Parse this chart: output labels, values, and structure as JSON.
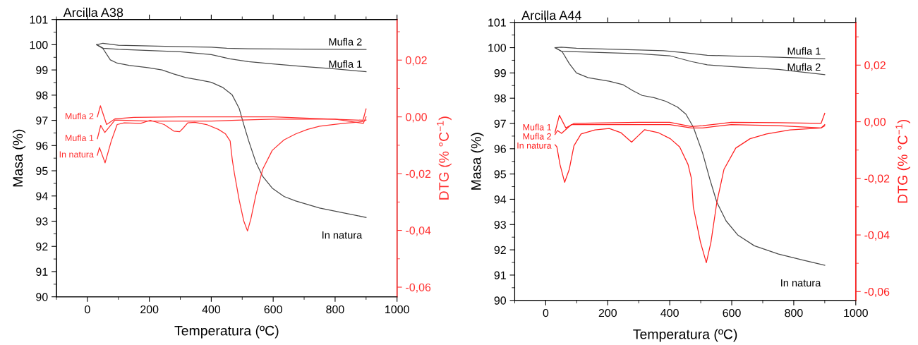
{
  "chart_data": [
    {
      "type": "line",
      "title": "Arcilla A38",
      "xlabel": "Temperatura (ºC)",
      "ylabel": "Masa (%)",
      "y2label": "DTG (% °C$^{−1}$)",
      "xlim": [
        -100,
        1000
      ],
      "xticks": [
        {
          "value": -100,
          "label": null
        },
        0,
        {
          "value": 100,
          "label": null
        },
        200,
        {
          "value": 300,
          "label": null
        },
        400,
        {
          "value": 500,
          "label": null
        },
        600,
        {
          "value": 700,
          "label": null
        },
        800,
        {
          "value": 900,
          "label": null
        },
        1000
      ],
      "ylim": [
        90,
        101
      ],
      "yticks": [
        90,
        {
          "value": 90.5,
          "label": null
        },
        91,
        {
          "value": 91.5,
          "label": null
        },
        92,
        {
          "value": 92.5,
          "label": null
        },
        93,
        {
          "value": 93.5,
          "label": null
        },
        94,
        {
          "value": 94.5,
          "label": null
        },
        95,
        {
          "value": 95.5,
          "label": null
        },
        96,
        {
          "value": 96.5,
          "label": null
        },
        97,
        {
          "value": 97.5,
          "label": null
        },
        98,
        {
          "value": 98.5,
          "label": null
        },
        99,
        {
          "value": 99.5,
          "label": null
        },
        100,
        {
          "value": 100.5,
          "label": null
        },
        101
      ],
      "y2lim": [
        -0.0634,
        0.0343
      ],
      "y2ticks": [
        {
          "value": -0.06,
          "label": "-0,06"
        },
        {
          "value": -0.05,
          "label": null
        },
        {
          "value": -0.04,
          "label": "-0,04"
        },
        {
          "value": -0.03,
          "label": null
        },
        {
          "value": -0.02,
          "label": "-0,02"
        },
        {
          "value": -0.01,
          "label": null
        },
        {
          "value": 0,
          "label": "0,00"
        },
        {
          "value": 0.01,
          "label": null
        },
        {
          "value": 0.02,
          "label": "0,02"
        },
        {
          "value": 0.03,
          "label": null
        }
      ],
      "series": [
        {
          "name": "Mufla 2",
          "color": "#4a4a4a",
          "x": [
            30,
            50,
            100,
            200,
            400,
            450,
            520,
            600,
            900
          ],
          "values": [
            100,
            100.06,
            99.98,
            99.95,
            99.9,
            99.86,
            99.84,
            99.83,
            99.81
          ]
        },
        {
          "name": "Mufla 1",
          "color": "#4a4a4a",
          "x": [
            30,
            51,
            100,
            300,
            400,
            460,
            520,
            600,
            700,
            800,
            900
          ],
          "values": [
            100,
            99.86,
            99.82,
            99.72,
            99.61,
            99.44,
            99.33,
            99.24,
            99.13,
            99.04,
            98.93
          ]
        },
        {
          "name": "In natura",
          "color": "#4a4a4a",
          "x": [
            30,
            50,
            74,
            96,
            134,
            195,
            241,
            279,
            317,
            362,
            400,
            438,
            467,
            490,
            505,
            521,
            544,
            566,
            597,
            635,
            673,
            750,
            826,
            900
          ],
          "values": [
            100,
            99.85,
            99.4,
            99.27,
            99.18,
            99.09,
            99.0,
            98.84,
            98.7,
            98.6,
            98.51,
            98.3,
            98.02,
            97.48,
            96.83,
            96.18,
            95.34,
            94.78,
            94.31,
            93.98,
            93.8,
            93.52,
            93.33,
            93.15
          ]
        },
        {
          "name": "Mufla 2",
          "color": "#ff3030",
          "axis": "y2",
          "x": [
            32,
            42,
            62,
            89,
            150,
            300,
            600,
            890,
            900
          ],
          "values": [
            0.0,
            0.0039,
            -0.0027,
            -0.0007,
            -0.0002,
            0.0,
            0.0,
            -0.0012,
            0.0028
          ]
        },
        {
          "name": "Mufla 1",
          "color": "#ff3030",
          "axis": "y2",
          "x": [
            32,
            43,
            56,
            89,
            200,
            400,
            500,
            600,
            800,
            891,
            900
          ],
          "values": [
            -0.0077,
            -0.003,
            -0.0055,
            -0.0011,
            -0.0015,
            -0.0015,
            -0.0011,
            -0.0008,
            -0.0008,
            -0.0023,
            0.0
          ]
        },
        {
          "name": "In natura",
          "color": "#ff3030",
          "axis": "y2",
          "x": [
            32,
            39,
            57,
            77,
            96,
            119,
            172,
            203,
            248,
            279,
            298,
            309,
            324,
            347,
            385,
            423,
            446,
            461,
            468,
            475,
            490,
            505,
            517,
            528,
            544,
            566,
            597,
            635,
            673,
            711,
            750,
            826,
            887,
            900
          ],
          "values": [
            -0.0135,
            -0.0108,
            -0.0162,
            -0.0085,
            -0.0027,
            -0.0021,
            -0.0023,
            -0.0012,
            -0.0027,
            -0.005,
            -0.0052,
            -0.004,
            -0.0021,
            -0.0019,
            -0.0027,
            -0.0044,
            -0.006,
            -0.0085,
            -0.0152,
            -0.0201,
            -0.0292,
            -0.0367,
            -0.0402,
            -0.0359,
            -0.0276,
            -0.0185,
            -0.0118,
            -0.0081,
            -0.006,
            -0.0044,
            -0.0033,
            -0.0023,
            -0.0017,
            -0.0011
          ]
        }
      ]
    },
    {
      "type": "line",
      "title": "Arcilla A44",
      "xlabel": "Temperatura (ºC)",
      "ylabel": "Masa (%)",
      "y2label": "DTG (% °C$^{−1}$)",
      "xlim": [
        -100,
        1000
      ],
      "xticks": [
        {
          "value": -100,
          "label": null
        },
        0,
        {
          "value": 100,
          "label": null
        },
        200,
        {
          "value": 300,
          "label": null
        },
        400,
        {
          "value": 500,
          "label": null
        },
        600,
        {
          "value": 700,
          "label": null
        },
        800,
        {
          "value": 900,
          "label": null
        },
        1000
      ],
      "ylim": [
        90,
        101
      ],
      "yticks": [
        90,
        {
          "value": 90.5,
          "label": null
        },
        91,
        {
          "value": 91.5,
          "label": null
        },
        92,
        {
          "value": 92.5,
          "label": null
        },
        93,
        {
          "value": 93.5,
          "label": null
        },
        94,
        {
          "value": 94.5,
          "label": null
        },
        95,
        {
          "value": 95.5,
          "label": null
        },
        96,
        {
          "value": 96.5,
          "label": null
        },
        97,
        {
          "value": 97.5,
          "label": null
        },
        98,
        {
          "value": 98.5,
          "label": null
        },
        99,
        {
          "value": 99.5,
          "label": null
        },
        100,
        {
          "value": 100.5,
          "label": null
        },
        101
      ],
      "y2lim": [
        -0.0631,
        0.0351
      ],
      "y2ticks": [
        {
          "value": -0.06,
          "label": "-0,06"
        },
        {
          "value": -0.05,
          "label": null
        },
        {
          "value": -0.04,
          "label": "-0,04"
        },
        {
          "value": -0.03,
          "label": null
        },
        {
          "value": -0.02,
          "label": "-0,02"
        },
        {
          "value": -0.01,
          "label": null
        },
        {
          "value": 0,
          "label": "0,00"
        },
        {
          "value": 0.01,
          "label": null
        },
        {
          "value": 0.02,
          "label": "0,02"
        },
        {
          "value": 0.03,
          "label": null
        }
      ],
      "series": [
        {
          "name": "Mufla 1",
          "color": "#4a4a4a",
          "x": [
            30,
            50,
            99,
            304,
            380,
            440,
            521,
            598,
            751,
            900
          ],
          "values": [
            100,
            100.02,
            99.98,
            99.91,
            99.88,
            99.81,
            99.7,
            99.67,
            99.62,
            99.56
          ]
        },
        {
          "name": "Mufla 2",
          "color": "#4a4a4a",
          "x": [
            30,
            50,
            100,
            300,
            400,
            470,
            521,
            598,
            751,
            900
          ],
          "values": [
            100,
            99.86,
            99.84,
            99.76,
            99.68,
            99.45,
            99.32,
            99.25,
            99.14,
            98.93
          ]
        },
        {
          "name": "In natura",
          "color": "#4a4a4a",
          "x": [
            30,
            53,
            76,
            99,
            137,
            205,
            250,
            281,
            311,
            349,
            387,
            425,
            452,
            476,
            506,
            529,
            552,
            582,
            620,
            673,
            751,
            827,
            900
          ],
          "values": [
            100,
            99.84,
            99.37,
            99.0,
            98.81,
            98.67,
            98.53,
            98.3,
            98.11,
            98.02,
            97.88,
            97.65,
            97.37,
            96.86,
            95.83,
            94.81,
            93.88,
            93.14,
            92.58,
            92.16,
            91.83,
            91.6,
            91.39
          ]
        },
        {
          "name": "Mufla 1",
          "color": "#ff2020",
          "axis": "y2",
          "x": [
            30,
            44,
            65,
            91,
            300,
            400,
            470,
            506,
            598,
            751,
            888,
            900
          ],
          "values": [
            -0.0037,
            0.0023,
            -0.0022,
            -0.0006,
            -0.0002,
            -0.0002,
            -0.0017,
            -0.0014,
            -0.0002,
            -0.0003,
            -0.0006,
            0.003
          ]
        },
        {
          "name": "Mufla 2",
          "color": "#ff2020",
          "axis": "y2",
          "x": [
            30,
            38,
            51,
            83,
            400,
            470,
            506,
            598,
            751,
            888,
            900
          ],
          "values": [
            -0.0045,
            -0.0031,
            -0.0041,
            -0.001,
            -0.001,
            -0.0022,
            -0.0022,
            -0.001,
            -0.0014,
            -0.0022,
            -0.001
          ]
        },
        {
          "name": "In natura",
          "color": "#ff2020",
          "axis": "y2",
          "x": [
            30,
            36,
            46,
            61,
            76,
            91,
            114,
            159,
            205,
            243,
            277,
            296,
            319,
            364,
            402,
            432,
            459,
            470,
            476,
            499,
            518,
            533,
            552,
            575,
            613,
            659,
            712,
            788,
            888,
            900
          ],
          "values": [
            -0.0081,
            -0.0089,
            -0.0151,
            -0.0214,
            -0.0168,
            -0.0085,
            -0.0043,
            -0.0029,
            -0.0024,
            -0.0039,
            -0.0072,
            -0.0052,
            -0.0028,
            -0.0039,
            -0.006,
            -0.0089,
            -0.0151,
            -0.0201,
            -0.0301,
            -0.0425,
            -0.0498,
            -0.0425,
            -0.0284,
            -0.0168,
            -0.0093,
            -0.006,
            -0.0043,
            -0.0029,
            -0.0022,
            -0.0014
          ]
        }
      ]
    }
  ]
}
